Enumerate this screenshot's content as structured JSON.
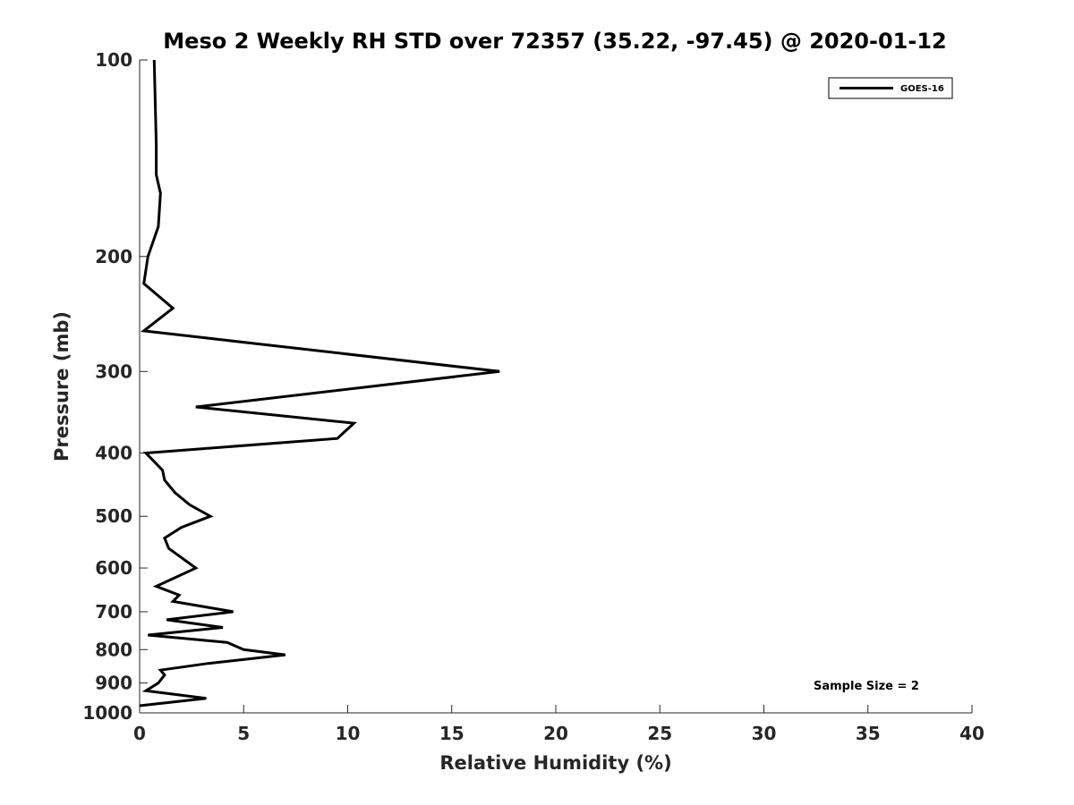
{
  "chart_data": {
    "type": "line",
    "title": "Meso 2 Weekly RH STD over 72357 (35.22, -97.45) @ 2020-01-12",
    "xlabel": "Relative Humidity (%)",
    "ylabel": "Pressure (mb)",
    "xlim": [
      0,
      40
    ],
    "ylim": [
      1000,
      100
    ],
    "y_scale": "log",
    "y_reversed": true,
    "x_ticks": [
      0,
      5,
      10,
      15,
      20,
      25,
      30,
      35,
      40
    ],
    "y_ticks": [
      100,
      200,
      300,
      400,
      500,
      600,
      700,
      800,
      900,
      1000
    ],
    "grid": false,
    "legend_position": "top-right",
    "annotation": "Sample Size = 2",
    "series": [
      {
        "name": "GOES-16",
        "color": "#000000",
        "x": [
          0.7,
          0.8,
          0.8,
          1.0,
          0.9,
          0.4,
          0.2,
          1.6,
          0.2,
          17.3,
          2.7,
          10.3,
          9.5,
          0.3,
          1.1,
          1.2,
          1.7,
          2.4,
          3.4,
          2.0,
          1.2,
          1.4,
          2.7,
          0.8,
          1.9,
          1.6,
          4.5,
          1.3,
          4.0,
          0.4,
          4.2,
          5.0,
          7.0,
          3.3,
          1.0,
          1.2,
          0.9,
          0.3,
          3.2,
          0.0
        ],
        "y": [
          100,
          135,
          150,
          160,
          180,
          200,
          220,
          240,
          260,
          300,
          340,
          360,
          380,
          400,
          425,
          440,
          460,
          480,
          500,
          520,
          540,
          560,
          600,
          640,
          660,
          675,
          700,
          720,
          740,
          760,
          780,
          800,
          815,
          840,
          860,
          875,
          900,
          925,
          950,
          975
        ]
      }
    ]
  }
}
